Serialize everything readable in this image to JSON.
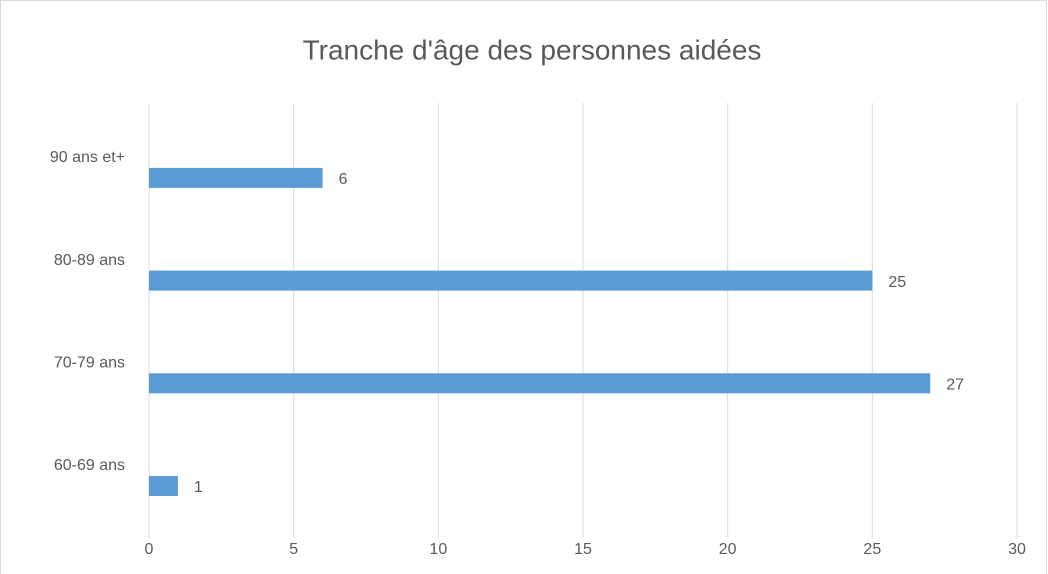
{
  "chart_data": {
    "type": "barh",
    "title": "Tranche d'âge des personnes aidées",
    "categories": [
      "60-69 ans",
      "70-79 ans",
      "80-89 ans",
      "90 ans et+"
    ],
    "values": [
      1,
      27,
      25,
      6
    ],
    "color": "#5b9bd5",
    "xlim": [
      0,
      30
    ],
    "xticks": [
      0,
      5,
      10,
      15,
      20,
      25,
      30
    ],
    "grid": true
  }
}
